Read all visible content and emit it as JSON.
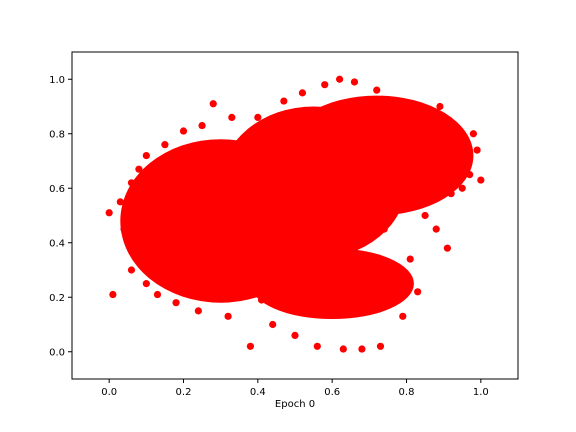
{
  "chart_data": {
    "type": "scatter",
    "title": "",
    "xlabel": "Epoch 0",
    "ylabel": "",
    "xlim": [
      -0.1,
      1.1
    ],
    "ylim": [
      -0.1,
      1.1
    ],
    "xticks": [
      "0.0",
      "0.2",
      "0.4",
      "0.6",
      "0.8",
      "1.0"
    ],
    "yticks": [
      "0.0",
      "0.2",
      "0.4",
      "0.6",
      "0.8",
      "1.0"
    ],
    "grid": false,
    "legend": "none",
    "marker_color": "#ff0000",
    "series": [
      {
        "color": "#ff0000",
        "points": [
          [
            0.0,
            0.51
          ],
          [
            0.01,
            0.21
          ],
          [
            0.03,
            0.55
          ],
          [
            0.04,
            0.45
          ],
          [
            0.06,
            0.62
          ],
          [
            0.06,
            0.3
          ],
          [
            0.08,
            0.67
          ],
          [
            0.08,
            0.38
          ],
          [
            0.1,
            0.72
          ],
          [
            0.1,
            0.25
          ],
          [
            0.12,
            0.58
          ],
          [
            0.13,
            0.21
          ],
          [
            0.15,
            0.76
          ],
          [
            0.16,
            0.43
          ],
          [
            0.18,
            0.18
          ],
          [
            0.2,
            0.81
          ],
          [
            0.21,
            0.64
          ],
          [
            0.22,
            0.35
          ],
          [
            0.24,
            0.15
          ],
          [
            0.25,
            0.83
          ],
          [
            0.27,
            0.52
          ],
          [
            0.28,
            0.91
          ],
          [
            0.29,
            0.24
          ],
          [
            0.3,
            0.72
          ],
          [
            0.32,
            0.13
          ],
          [
            0.33,
            0.86
          ],
          [
            0.35,
            0.44
          ],
          [
            0.36,
            0.3
          ],
          [
            0.38,
            0.02
          ],
          [
            0.38,
            0.61
          ],
          [
            0.4,
            0.86
          ],
          [
            0.41,
            0.19
          ],
          [
            0.42,
            0.54
          ],
          [
            0.44,
            0.1
          ],
          [
            0.45,
            0.77
          ],
          [
            0.46,
            0.37
          ],
          [
            0.47,
            0.92
          ],
          [
            0.48,
            0.62
          ],
          [
            0.49,
            0.23
          ],
          [
            0.5,
            0.06
          ],
          [
            0.51,
            0.48
          ],
          [
            0.52,
            0.95
          ],
          [
            0.53,
            0.7
          ],
          [
            0.54,
            0.3
          ],
          [
            0.55,
            0.85
          ],
          [
            0.56,
            0.02
          ],
          [
            0.57,
            0.56
          ],
          [
            0.58,
            0.98
          ],
          [
            0.59,
            0.14
          ],
          [
            0.6,
            0.64
          ],
          [
            0.61,
            0.39
          ],
          [
            0.62,
            1.0
          ],
          [
            0.63,
            0.01
          ],
          [
            0.64,
            0.76
          ],
          [
            0.65,
            0.25
          ],
          [
            0.66,
            0.99
          ],
          [
            0.67,
            0.5
          ],
          [
            0.68,
            0.01
          ],
          [
            0.69,
            0.88
          ],
          [
            0.7,
            0.16
          ],
          [
            0.71,
            0.62
          ],
          [
            0.72,
            0.96
          ],
          [
            0.73,
            0.02
          ],
          [
            0.74,
            0.45
          ],
          [
            0.75,
            0.78
          ],
          [
            0.76,
            0.27
          ],
          [
            0.77,
            0.92
          ],
          [
            0.78,
            0.55
          ],
          [
            0.79,
            0.13
          ],
          [
            0.8,
            0.83
          ],
          [
            0.81,
            0.34
          ],
          [
            0.82,
            0.68
          ],
          [
            0.83,
            0.22
          ],
          [
            0.84,
            0.88
          ],
          [
            0.85,
            0.5
          ],
          [
            0.86,
            0.78
          ],
          [
            0.87,
            0.62
          ],
          [
            0.88,
            0.45
          ],
          [
            0.89,
            0.9
          ],
          [
            0.9,
            0.7
          ],
          [
            0.91,
            0.38
          ],
          [
            0.92,
            0.58
          ],
          [
            0.93,
            0.78
          ],
          [
            0.94,
            0.66
          ],
          [
            0.95,
            0.6
          ],
          [
            0.96,
            0.73
          ],
          [
            0.97,
            0.65
          ],
          [
            0.98,
            0.8
          ],
          [
            0.99,
            0.74
          ],
          [
            1.0,
            0.63
          ]
        ]
      }
    ]
  }
}
